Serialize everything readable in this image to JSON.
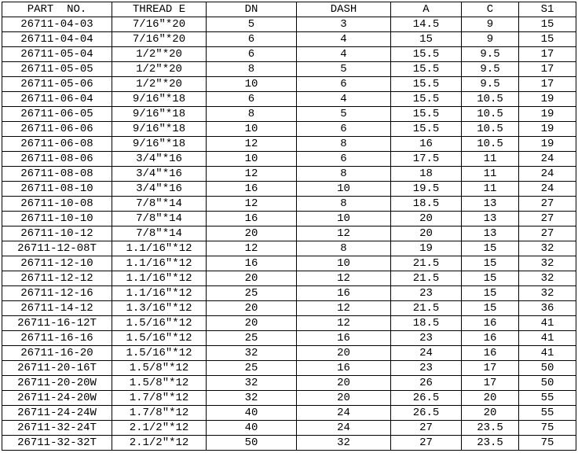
{
  "colors": {
    "background": "#ffffff",
    "grid": "#000000",
    "text": "#000000"
  },
  "table": {
    "columns": [
      "PART  NO.",
      "THREAD E",
      "DN",
      "DASH",
      "A",
      "C",
      "S1"
    ],
    "rows": [
      [
        "26711-04-03",
        "7/16″*20",
        "5",
        "3",
        "14.5",
        "9",
        "15"
      ],
      [
        "26711-04-04",
        "7/16″*20",
        "6",
        "4",
        "15",
        "9",
        "15"
      ],
      [
        "26711-05-04",
        "1/2″*20",
        "6",
        "4",
        "15.5",
        "9.5",
        "17"
      ],
      [
        "26711-05-05",
        "1/2″*20",
        "8",
        "5",
        "15.5",
        "9.5",
        "17"
      ],
      [
        "26711-05-06",
        "1/2″*20",
        "10",
        "6",
        "15.5",
        "9.5",
        "17"
      ],
      [
        "26711-06-04",
        "9/16″*18",
        "6",
        "4",
        "15.5",
        "10.5",
        "19"
      ],
      [
        "26711-06-05",
        "9/16″*18",
        "8",
        "5",
        "15.5",
        "10.5",
        "19"
      ],
      [
        "26711-06-06",
        "9/16″*18",
        "10",
        "6",
        "15.5",
        "10.5",
        "19"
      ],
      [
        "26711-06-08",
        "9/16″*18",
        "12",
        "8",
        "16",
        "10.5",
        "19"
      ],
      [
        "26711-08-06",
        "3/4″*16",
        "10",
        "6",
        "17.5",
        "11",
        "24"
      ],
      [
        "26711-08-08",
        "3/4″*16",
        "12",
        "8",
        "18",
        "11",
        "24"
      ],
      [
        "26711-08-10",
        "3/4″*16",
        "16",
        "10",
        "19.5",
        "11",
        "24"
      ],
      [
        "26711-10-08",
        "7/8″*14",
        "12",
        "8",
        "18.5",
        "13",
        "27"
      ],
      [
        "26711-10-10",
        "7/8″*14",
        "16",
        "10",
        "20",
        "13",
        "27"
      ],
      [
        "26711-10-12",
        "7/8″*14",
        "20",
        "12",
        "20",
        "13",
        "27"
      ],
      [
        "26711-12-08T",
        "1.1/16″*12",
        "12",
        "8",
        "19",
        "15",
        "32"
      ],
      [
        "26711-12-10",
        "1.1/16″*12",
        "16",
        "10",
        "21.5",
        "15",
        "32"
      ],
      [
        "26711-12-12",
        "1.1/16″*12",
        "20",
        "12",
        "21.5",
        "15",
        "32"
      ],
      [
        "26711-12-16",
        "1.1/16″*12",
        "25",
        "16",
        "23",
        "15",
        "32"
      ],
      [
        "26711-14-12",
        "1.3/16″*12",
        "20",
        "12",
        "21.5",
        "15",
        "36"
      ],
      [
        "26711-16-12T",
        "1.5/16″*12",
        "20",
        "12",
        "18.5",
        "16",
        "41"
      ],
      [
        "26711-16-16",
        "1.5/16″*12",
        "25",
        "16",
        "23",
        "16",
        "41"
      ],
      [
        "26711-16-20",
        "1.5/16″*12",
        "32",
        "20",
        "24",
        "16",
        "41"
      ],
      [
        "26711-20-16T",
        "1.5/8″*12",
        "25",
        "16",
        "23",
        "17",
        "50"
      ],
      [
        "26711-20-20W",
        "1.5/8″*12",
        "32",
        "20",
        "26",
        "17",
        "50"
      ],
      [
        "26711-24-20W",
        "1.7/8″*12",
        "32",
        "20",
        "26.5",
        "20",
        "55"
      ],
      [
        "26711-24-24W",
        "1.7/8″*12",
        "40",
        "24",
        "26.5",
        "20",
        "55"
      ],
      [
        "26711-32-24T",
        "2.1/2″*12",
        "40",
        "24",
        "27",
        "23.5",
        "75"
      ],
      [
        "26711-32-32T",
        "2.1/2″*12",
        "50",
        "32",
        "27",
        "23.5",
        "75"
      ]
    ]
  }
}
